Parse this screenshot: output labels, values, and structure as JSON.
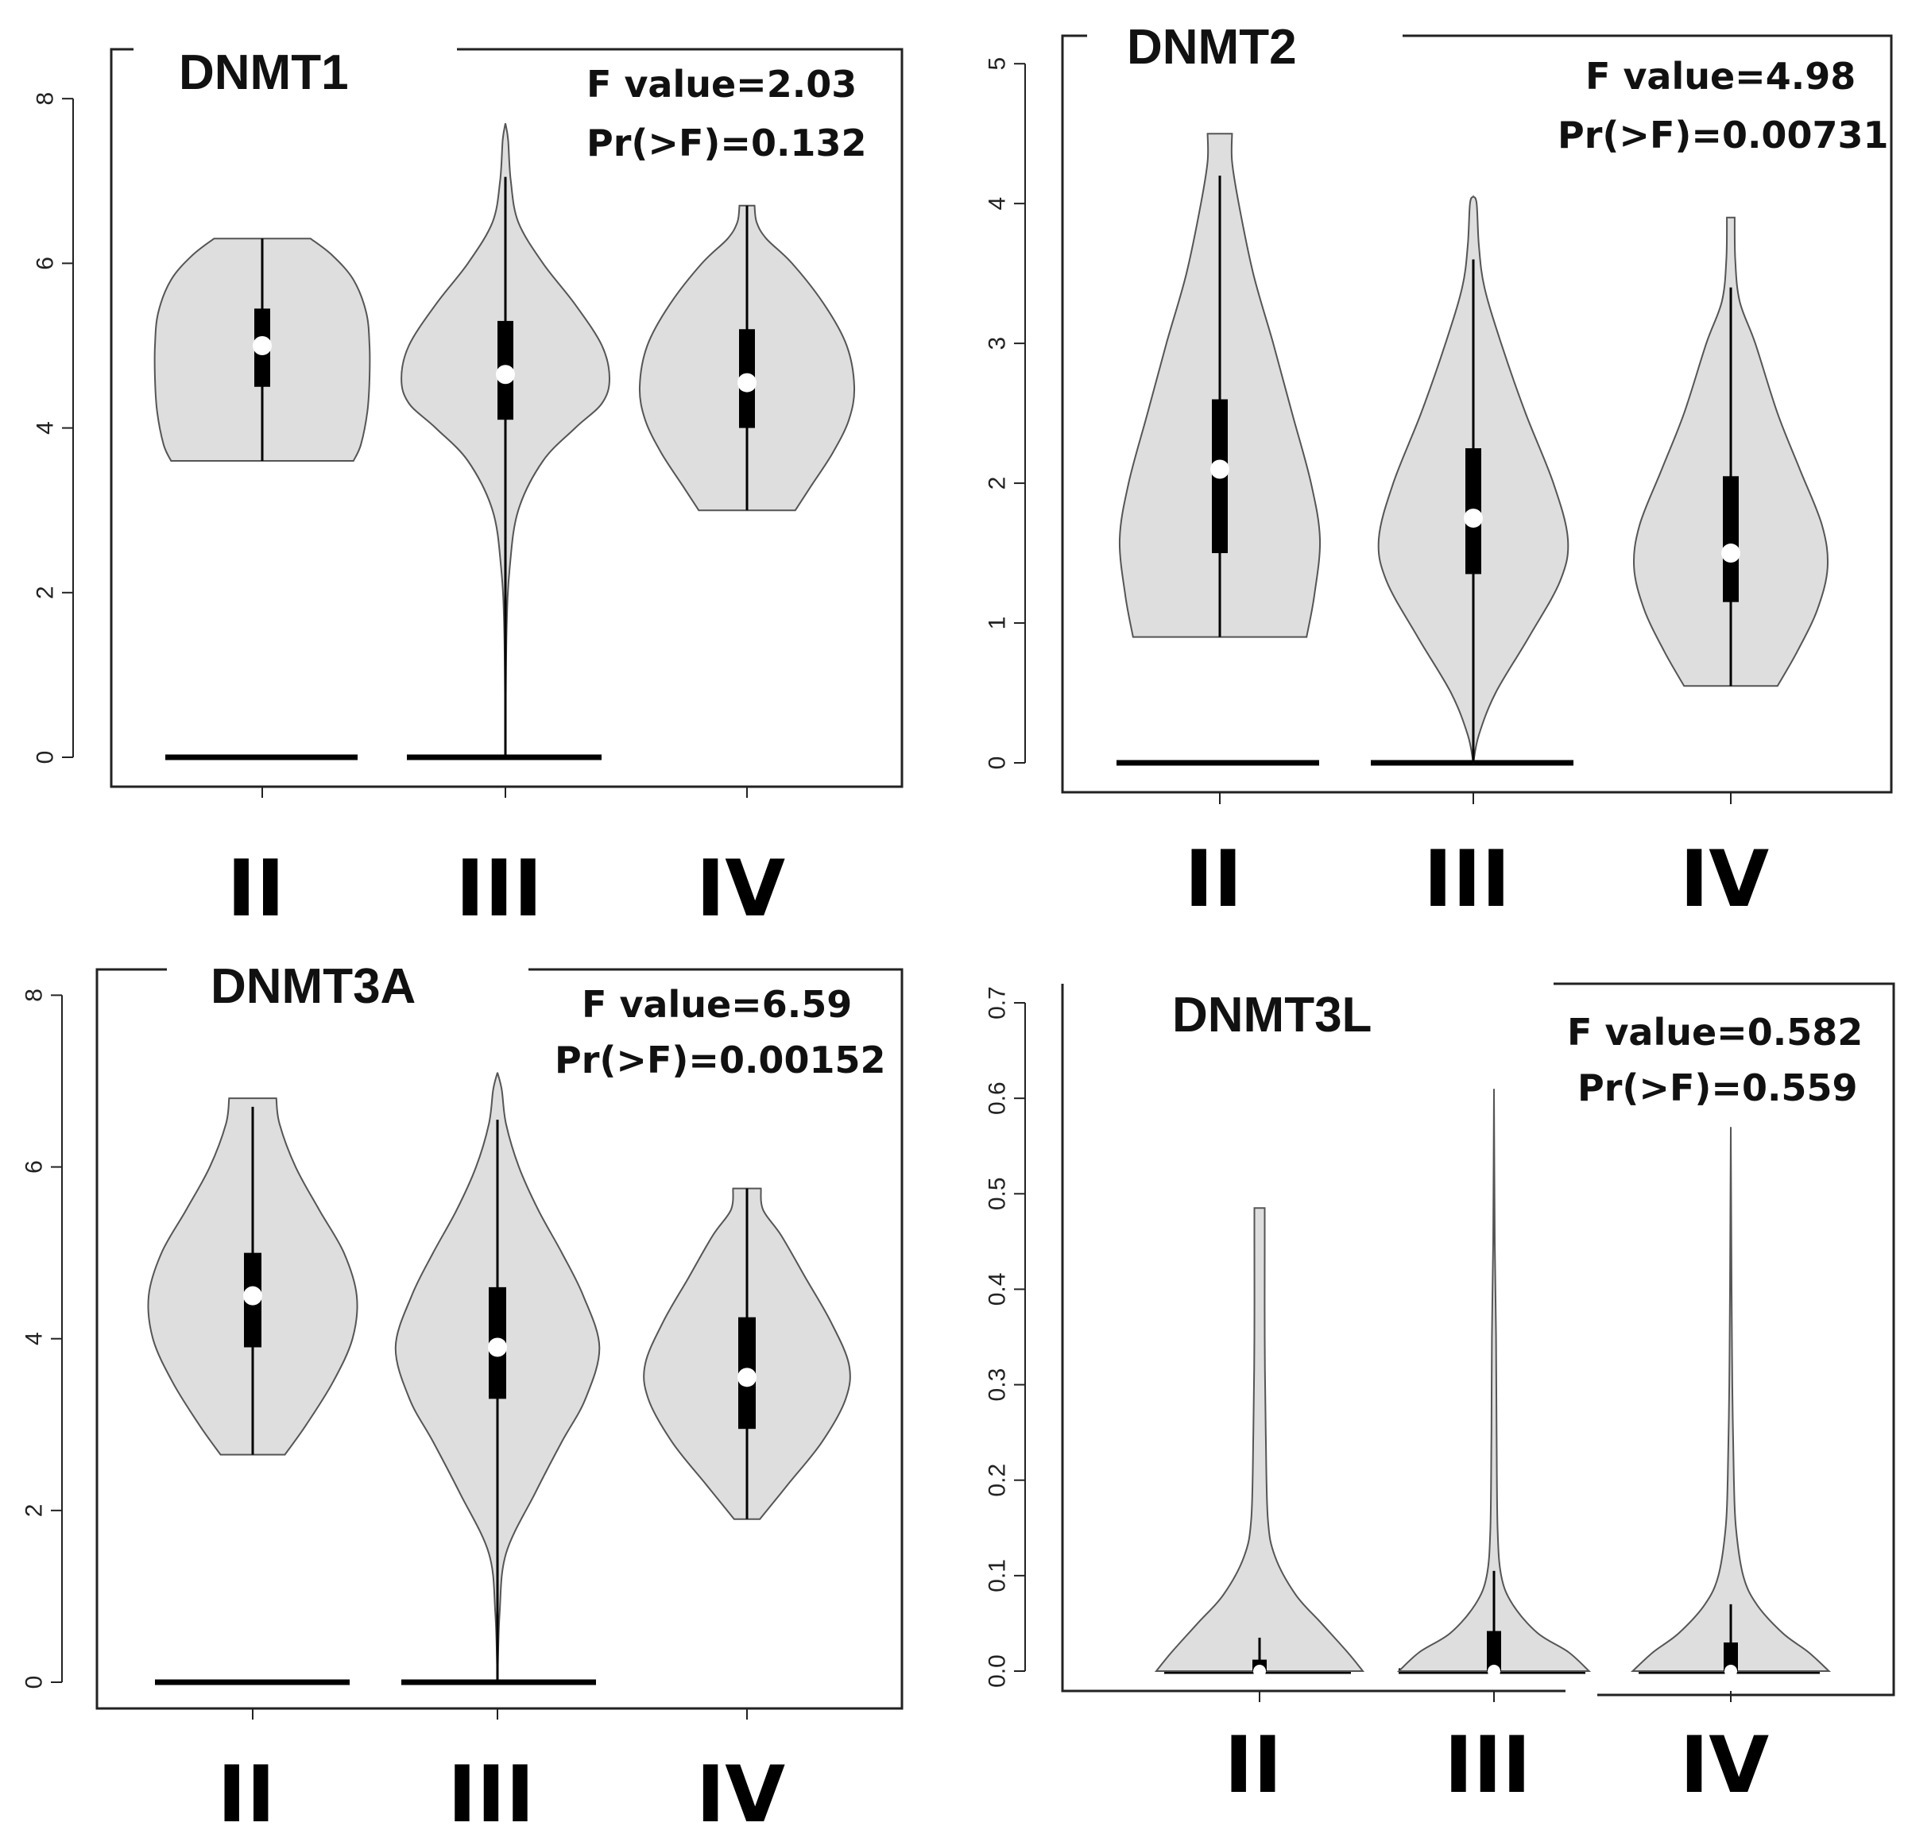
{
  "chart_data": [
    {
      "id": "dnmt1",
      "type": "violin",
      "title": "DNMT1",
      "stats": [
        "F value=2.03",
        "Pr(>F)=0.132"
      ],
      "ylim": [
        0,
        8.6
      ],
      "yticks": [
        0,
        2,
        4,
        6,
        8
      ],
      "categories": [
        "II",
        "III",
        "IV"
      ],
      "violins": [
        {
          "name": "II",
          "min": 3.6,
          "max": 6.3,
          "q1": 4.5,
          "q3": 5.45,
          "median": 5.0,
          "whisker_low": 3.6,
          "whisker_high": 6.3,
          "zero_bar": true,
          "flat_top": true,
          "flat_bottom": true,
          "profile": [
            [
              3.6,
              0.85
            ],
            [
              3.8,
              0.92
            ],
            [
              4.2,
              0.98
            ],
            [
              4.6,
              1.0
            ],
            [
              5.0,
              1.0
            ],
            [
              5.4,
              0.97
            ],
            [
              5.8,
              0.85
            ],
            [
              6.1,
              0.65
            ],
            [
              6.3,
              0.45
            ]
          ]
        },
        {
          "name": "III",
          "min": 0.0,
          "max": 7.7,
          "q1": 4.1,
          "q3": 5.3,
          "median": 4.65,
          "whisker_low": 0.0,
          "whisker_high": 7.05,
          "zero_bar": true,
          "flat_top": false,
          "flat_bottom": false,
          "profile": [
            [
              0.0,
              0.0
            ],
            [
              1.5,
              0.01
            ],
            [
              2.3,
              0.04
            ],
            [
              3.0,
              0.12
            ],
            [
              3.6,
              0.35
            ],
            [
              4.0,
              0.65
            ],
            [
              4.3,
              0.9
            ],
            [
              4.6,
              0.97
            ],
            [
              5.0,
              0.9
            ],
            [
              5.5,
              0.65
            ],
            [
              6.0,
              0.35
            ],
            [
              6.5,
              0.12
            ],
            [
              7.0,
              0.05
            ],
            [
              7.5,
              0.025
            ],
            [
              7.7,
              0.0
            ]
          ]
        },
        {
          "name": "IV",
          "min": 3.0,
          "max": 6.7,
          "q1": 4.0,
          "q3": 5.2,
          "median": 4.55,
          "whisker_low": 3.0,
          "whisker_high": 6.7,
          "zero_bar": false,
          "flat_top": true,
          "flat_bottom": true,
          "profile": [
            [
              3.0,
              0.45
            ],
            [
              3.3,
              0.6
            ],
            [
              3.7,
              0.8
            ],
            [
              4.1,
              0.95
            ],
            [
              4.5,
              1.0
            ],
            [
              5.0,
              0.93
            ],
            [
              5.5,
              0.72
            ],
            [
              6.0,
              0.42
            ],
            [
              6.3,
              0.18
            ],
            [
              6.5,
              0.09
            ],
            [
              6.7,
              0.07
            ]
          ]
        }
      ]
    },
    {
      "id": "dnmt2",
      "type": "violin",
      "title": "DNMT2",
      "stats": [
        "F value=4.98",
        "Pr(>F)=0.00731"
      ],
      "ylim": [
        0,
        5.2
      ],
      "yticks": [
        0,
        1,
        2,
        3,
        4,
        5
      ],
      "categories": [
        "II",
        "III",
        "IV"
      ],
      "violins": [
        {
          "name": "II",
          "min": 0.9,
          "max": 4.5,
          "q1": 1.5,
          "q3": 2.6,
          "median": 2.1,
          "whisker_low": 0.9,
          "whisker_high": 4.2,
          "zero_bar": true,
          "flat_top": true,
          "flat_bottom": true,
          "profile": [
            [
              0.9,
              0.78
            ],
            [
              1.2,
              0.85
            ],
            [
              1.6,
              0.9
            ],
            [
              2.0,
              0.82
            ],
            [
              2.5,
              0.65
            ],
            [
              3.0,
              0.48
            ],
            [
              3.5,
              0.3
            ],
            [
              4.0,
              0.17
            ],
            [
              4.3,
              0.11
            ],
            [
              4.5,
              0.11
            ]
          ]
        },
        {
          "name": "III",
          "min": 0.0,
          "max": 4.05,
          "q1": 1.35,
          "q3": 2.25,
          "median": 1.75,
          "whisker_low": 0.0,
          "whisker_high": 3.6,
          "zero_bar": true,
          "flat_top": false,
          "flat_bottom": false,
          "profile": [
            [
              0.0,
              0.0
            ],
            [
              0.2,
              0.05
            ],
            [
              0.5,
              0.2
            ],
            [
              0.9,
              0.5
            ],
            [
              1.3,
              0.78
            ],
            [
              1.6,
              0.85
            ],
            [
              2.0,
              0.72
            ],
            [
              2.5,
              0.47
            ],
            [
              3.0,
              0.25
            ],
            [
              3.4,
              0.1
            ],
            [
              3.7,
              0.05
            ],
            [
              4.0,
              0.03
            ],
            [
              4.05,
              0.0
            ]
          ]
        },
        {
          "name": "IV",
          "min": 0.55,
          "max": 3.9,
          "q1": 1.15,
          "q3": 2.05,
          "median": 1.5,
          "whisker_low": 0.55,
          "whisker_high": 3.4,
          "zero_bar": false,
          "flat_top": true,
          "flat_bottom": true,
          "profile": [
            [
              0.55,
              0.42
            ],
            [
              0.8,
              0.6
            ],
            [
              1.1,
              0.78
            ],
            [
              1.4,
              0.87
            ],
            [
              1.7,
              0.82
            ],
            [
              2.1,
              0.62
            ],
            [
              2.5,
              0.42
            ],
            [
              3.0,
              0.22
            ],
            [
              3.3,
              0.08
            ],
            [
              3.6,
              0.04
            ],
            [
              3.9,
              0.035
            ]
          ]
        }
      ]
    },
    {
      "id": "dnmt3a",
      "type": "violin",
      "title": "DNMT3A",
      "stats": [
        "F value=6.59",
        "Pr(>F)=0.00152"
      ],
      "ylim": [
        0,
        8.3
      ],
      "yticks": [
        0,
        2,
        4,
        6,
        8
      ],
      "categories": [
        "II",
        "III",
        "IV"
      ],
      "violins": [
        {
          "name": "II",
          "min": 2.65,
          "max": 6.8,
          "q1": 3.9,
          "q3": 5.0,
          "median": 4.5,
          "whisker_low": 2.65,
          "whisker_high": 6.7,
          "zero_bar": true,
          "flat_top": true,
          "flat_bottom": true,
          "profile": [
            [
              2.65,
              0.3
            ],
            [
              3.0,
              0.5
            ],
            [
              3.5,
              0.75
            ],
            [
              4.0,
              0.93
            ],
            [
              4.5,
              0.97
            ],
            [
              5.0,
              0.85
            ],
            [
              5.5,
              0.62
            ],
            [
              6.0,
              0.4
            ],
            [
              6.5,
              0.25
            ],
            [
              6.8,
              0.22
            ]
          ]
        },
        {
          "name": "III",
          "min": 0.0,
          "max": 7.1,
          "q1": 3.3,
          "q3": 4.6,
          "median": 3.9,
          "whisker_low": 0.0,
          "whisker_high": 6.55,
          "zero_bar": true,
          "flat_top": false,
          "flat_bottom": false,
          "profile": [
            [
              0.0,
              0.0
            ],
            [
              0.8,
              0.02
            ],
            [
              1.5,
              0.08
            ],
            [
              2.2,
              0.35
            ],
            [
              2.8,
              0.6
            ],
            [
              3.3,
              0.82
            ],
            [
              3.9,
              0.95
            ],
            [
              4.5,
              0.8
            ],
            [
              5.0,
              0.6
            ],
            [
              5.5,
              0.38
            ],
            [
              6.0,
              0.2
            ],
            [
              6.5,
              0.08
            ],
            [
              6.9,
              0.04
            ],
            [
              7.1,
              0.0
            ]
          ]
        },
        {
          "name": "IV",
          "min": 1.9,
          "max": 5.75,
          "q1": 2.95,
          "q3": 4.25,
          "median": 3.55,
          "whisker_low": 1.9,
          "whisker_high": 5.75,
          "zero_bar": false,
          "flat_top": true,
          "flat_bottom": true,
          "profile": [
            [
              1.9,
              0.12
            ],
            [
              2.3,
              0.38
            ],
            [
              2.8,
              0.7
            ],
            [
              3.3,
              0.92
            ],
            [
              3.7,
              0.95
            ],
            [
              4.2,
              0.78
            ],
            [
              4.7,
              0.55
            ],
            [
              5.2,
              0.32
            ],
            [
              5.5,
              0.15
            ],
            [
              5.75,
              0.13
            ]
          ]
        }
      ]
    },
    {
      "id": "dnmt3l",
      "type": "violin",
      "title": "DNMT3L",
      "stats": [
        "F value=0.582",
        "Pr(>F)=0.559"
      ],
      "ylim": [
        0,
        0.72
      ],
      "yticks": [
        0.0,
        0.1,
        0.2,
        0.3,
        0.4,
        0.5,
        0.6,
        0.7
      ],
      "ytick_labels": [
        "0.0",
        "0.1",
        "0.2",
        "0.3",
        "0.4",
        "0.5",
        "0.6",
        "0.7"
      ],
      "categories": [
        "II",
        "III",
        "IV"
      ],
      "violins": [
        {
          "name": "II",
          "min": 0.0,
          "max": 0.485,
          "q1": 0.0,
          "q3": 0.012,
          "median": 0.0,
          "whisker_low": 0.0,
          "whisker_high": 0.035,
          "zero_bar": false,
          "flat_top": true,
          "flat_bottom": true,
          "profile": [
            [
              0.0,
              1.0
            ],
            [
              0.02,
              0.85
            ],
            [
              0.05,
              0.6
            ],
            [
              0.08,
              0.35
            ],
            [
              0.12,
              0.15
            ],
            [
              0.16,
              0.08
            ],
            [
              0.25,
              0.06
            ],
            [
              0.35,
              0.05
            ],
            [
              0.45,
              0.05
            ],
            [
              0.485,
              0.05
            ]
          ]
        },
        {
          "name": "III",
          "min": 0.0,
          "max": 0.61,
          "q1": 0.0,
          "q3": 0.042,
          "median": 0.0,
          "whisker_low": 0.0,
          "whisker_high": 0.105,
          "zero_bar": false,
          "flat_top": false,
          "flat_bottom": true,
          "profile": [
            [
              0.0,
              0.92
            ],
            [
              0.02,
              0.72
            ],
            [
              0.04,
              0.42
            ],
            [
              0.07,
              0.18
            ],
            [
              0.1,
              0.07
            ],
            [
              0.15,
              0.035
            ],
            [
              0.25,
              0.025
            ],
            [
              0.35,
              0.02
            ],
            [
              0.45,
              0.008
            ],
            [
              0.61,
              0.0
            ]
          ]
        },
        {
          "name": "IV",
          "min": 0.0,
          "max": 0.57,
          "q1": 0.0,
          "q3": 0.03,
          "median": 0.0,
          "whisker_low": 0.0,
          "whisker_high": 0.07,
          "zero_bar": false,
          "flat_top": false,
          "flat_bottom": true,
          "profile": [
            [
              0.0,
              0.95
            ],
            [
              0.02,
              0.75
            ],
            [
              0.04,
              0.5
            ],
            [
              0.07,
              0.25
            ],
            [
              0.1,
              0.12
            ],
            [
              0.15,
              0.05
            ],
            [
              0.2,
              0.03
            ],
            [
              0.3,
              0.015
            ],
            [
              0.4,
              0.008
            ],
            [
              0.57,
              0.0
            ]
          ]
        }
      ]
    }
  ]
}
